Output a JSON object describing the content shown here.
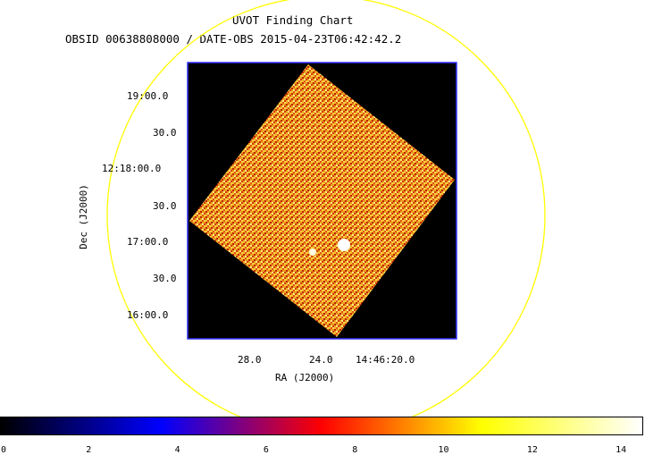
{
  "chart_data": {
    "type": "heatmap",
    "title": "UVOT Finding Chart",
    "subtitle": "OBSID 00638808000 / DATE-OBS 2015-04-23T06:42:42.2",
    "xlabel": "RA (J2000)",
    "ylabel": "Dec (J2000)",
    "ra_ticks": [
      "28.0",
      "24.0",
      "14:46:20.0"
    ],
    "dec_ticks": [
      "19:00.0",
      "30.0",
      "12:18:00.0",
      "30.0",
      "17:00.0",
      "30.0",
      "16:00.0"
    ],
    "colorbar": {
      "ticks": [
        "0",
        "2",
        "4",
        "6",
        "8",
        "10",
        "12",
        "14"
      ],
      "range": [
        0,
        14.5
      ],
      "colormap": [
        "#000000",
        "#0000ff",
        "#ff0000",
        "#ffff00",
        "#ffffff"
      ]
    },
    "colors": {
      "frame": "#0000ff",
      "circle": "#ffff00",
      "background": "#000000"
    }
  }
}
